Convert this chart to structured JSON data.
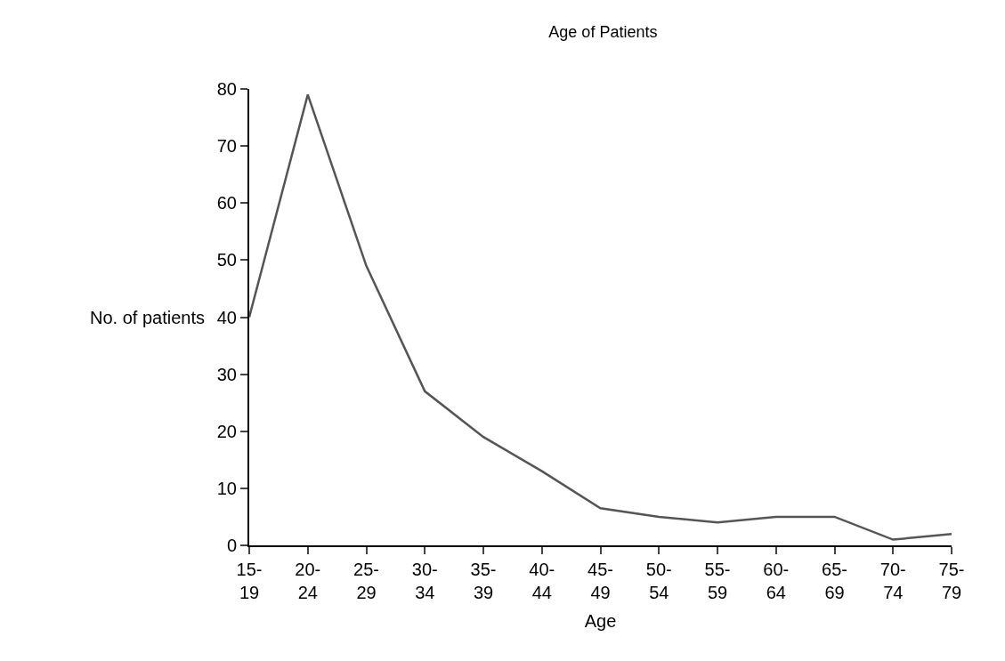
{
  "chart_data": {
    "type": "line",
    "title": "Age of Patients",
    "xlabel": "Age",
    "ylabel": "No. of patients",
    "categories": [
      "15-19",
      "20-24",
      "25-29",
      "30-34",
      "35-39",
      "40-44",
      "45-49",
      "50-54",
      "55-59",
      "60-64",
      "65-69",
      "70-74",
      "75-79"
    ],
    "series": [
      {
        "color": "#555555",
        "values": [
          40,
          79,
          49,
          27,
          19,
          13,
          6.5,
          5,
          4,
          5,
          5,
          1,
          2
        ]
      }
    ],
    "ylim": [
      0,
      80
    ],
    "yticks": [
      0,
      10,
      20,
      30,
      40,
      50,
      60,
      70,
      80
    ],
    "marker": "none",
    "line_style": "solid"
  }
}
